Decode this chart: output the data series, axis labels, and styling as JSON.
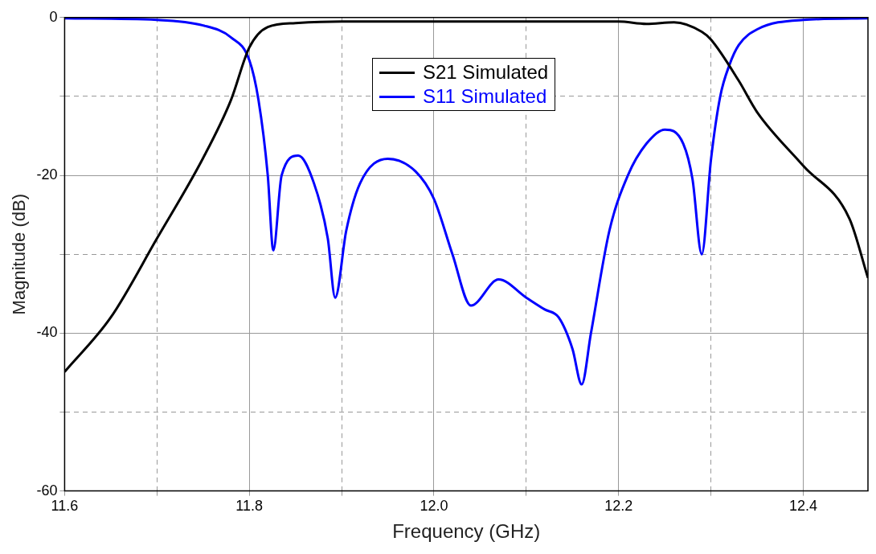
{
  "chart_data": {
    "type": "line",
    "xlabel": "Frequency (GHz)",
    "ylabel": "Magnitude (dB)",
    "xlim": [
      11.6,
      12.47
    ],
    "xticks": [
      11.6,
      {
        "value": 11.7,
        "label": null
      },
      11.8,
      {
        "value": 11.9,
        "label": null
      },
      {
        "value": 12.0,
        "label": "12.0"
      },
      {
        "value": 12.1,
        "label": null
      },
      12.2,
      {
        "value": 12.3,
        "label": null
      },
      12.4
    ],
    "ylim": [
      -60,
      0
    ],
    "yticks": [
      -60,
      {
        "value": -50,
        "label": null
      },
      -40,
      {
        "value": -30,
        "label": null
      },
      -20,
      {
        "value": -10,
        "label": null
      },
      0
    ],
    "grid": true,
    "legend": "top",
    "marker": "none",
    "line_style": "solid",
    "series": [
      {
        "name": "S21 Simulated",
        "color": "#000000",
        "x": [
          11.6,
          11.65,
          11.7,
          11.75,
          11.78,
          11.8,
          11.82,
          11.85,
          11.9,
          12.0,
          12.1,
          12.2,
          12.23,
          12.26,
          12.29,
          12.3,
          12.33,
          12.35,
          12.4,
          12.45,
          12.47
        ],
        "values": [
          -44.9,
          -38,
          -28,
          -17.8,
          -10.5,
          -3.8,
          -1.2,
          -0.7,
          -0.5,
          -0.5,
          -0.5,
          -0.5,
          -0.8,
          -0.6,
          -1.8,
          -2.8,
          -8,
          -12,
          -18.8,
          -25.5,
          -33
        ]
      },
      {
        "name": "S11 Simulated",
        "color": "#0000ff",
        "x": [
          11.6,
          11.7,
          11.75,
          11.78,
          11.8,
          11.81,
          11.82,
          11.826,
          11.835,
          11.853,
          11.87,
          11.885,
          11.893,
          11.905,
          11.92,
          11.95,
          11.98,
          12.0,
          12.02,
          12.04,
          12.07,
          12.1,
          12.12,
          12.135,
          12.15,
          12.16,
          12.17,
          12.19,
          12.21,
          12.23,
          12.25,
          12.27,
          12.28,
          12.29,
          12.3,
          12.31,
          12.32,
          12.33,
          12.35,
          12.4,
          12.47
        ],
        "values": [
          -0.1,
          -0.3,
          -1,
          -2.5,
          -5.4,
          -10.5,
          -20,
          -29.5,
          -20,
          -17.5,
          -21,
          -28,
          -35.5,
          -27,
          -21,
          -17.9,
          -19.5,
          -23,
          -30,
          -36.5,
          -33.2,
          -35.5,
          -37,
          -38,
          -42,
          -46.5,
          -40,
          -27,
          -20,
          -16,
          -14.2,
          -16,
          -20.5,
          -30,
          -18,
          -10,
          -6,
          -3.5,
          -1.5,
          -0.3,
          -0.1
        ]
      }
    ]
  }
}
